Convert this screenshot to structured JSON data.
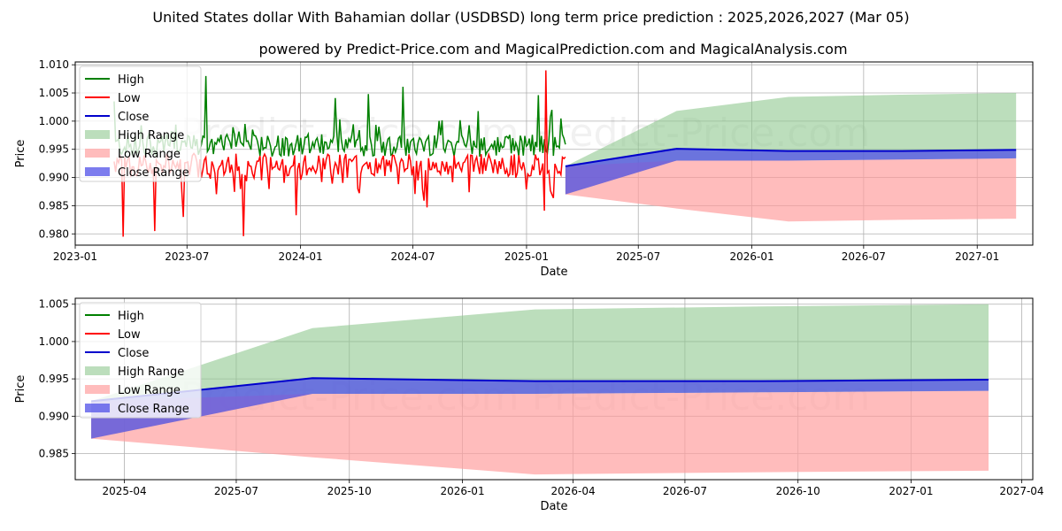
{
  "title": "United States dollar With Bahamian dollar (USDBSD) long term price prediction : 2025,2026,2027 (Mar 05)",
  "subtitle": "powered by Predict-Price.com and MagicalPrediction.com and MagicalAnalysis.com",
  "watermark": "Predict-Price.com",
  "colors": {
    "high": "#008000",
    "low": "#ff0000",
    "close": "#0000cc",
    "high_range": "#90c890",
    "low_range": "#ffa0a0",
    "close_range": "#5050e8",
    "grid": "#b0b0b0"
  },
  "chart_data": [
    {
      "type": "line",
      "xlabel": "Date",
      "ylabel": "Price",
      "xlim": [
        "2023-01-01",
        "2027-04-01"
      ],
      "ylim": [
        0.978,
        1.0105
      ],
      "xticks": [
        "2023-01",
        "2023-07",
        "2024-01",
        "2024-07",
        "2025-01",
        "2025-07",
        "2026-01",
        "2026-07",
        "2027-01"
      ],
      "yticks": [
        "0.980",
        "0.985",
        "0.990",
        "0.995",
        "1.000",
        "1.005",
        "1.010"
      ],
      "legend": [
        "High",
        "Low",
        "Close",
        "High Range",
        "Low Range",
        "Close Range"
      ],
      "legend_position": "upper-left",
      "history": {
        "start": "2023-03-05",
        "end": "2025-03-05",
        "high_base": 0.9955,
        "low_base": 0.9925,
        "high_spikes": [
          [
            "2023-03-05",
            1.0035
          ],
          [
            "2023-08-01",
            1.008
          ],
          [
            "2024-02-25",
            1.0041
          ],
          [
            "2024-04-20",
            1.0048
          ],
          [
            "2024-06-15",
            1.0061
          ],
          [
            "2025-01-20",
            1.0046
          ],
          [
            "2025-02-12",
            1.002
          ]
        ],
        "low_spikes": [
          [
            "2023-03-20",
            0.9795
          ],
          [
            "2023-05-10",
            0.9805
          ],
          [
            "2023-06-25",
            0.983
          ],
          [
            "2023-10-01",
            0.9796
          ],
          [
            "2023-12-25",
            0.9833
          ],
          [
            "2024-07-25",
            0.9847
          ],
          [
            "2025-01-30",
            0.9841
          ],
          [
            "2025-02-01",
            1.009
          ]
        ]
      },
      "forecast": {
        "dates": [
          "2025-03-05",
          "2025-09-01",
          "2026-03-01",
          "2026-09-01",
          "2027-03-05"
        ],
        "close": [
          0.992,
          0.9951,
          0.9947,
          0.9947,
          0.9949
        ],
        "high_range": [
          [
            0.987,
            0.992
          ],
          [
            0.993,
            1.0018
          ],
          [
            0.993,
            1.0043
          ],
          [
            0.9932,
            1.0047
          ],
          [
            0.9934,
            1.005
          ]
        ],
        "low_range": [
          [
            0.987,
            0.992
          ],
          [
            0.9845,
            0.993
          ],
          [
            0.9822,
            0.993
          ],
          [
            0.9825,
            0.9932
          ],
          [
            0.9827,
            0.9934
          ]
        ],
        "close_range": [
          [
            0.987,
            0.992
          ],
          [
            0.993,
            0.9951
          ],
          [
            0.993,
            0.9947
          ],
          [
            0.9932,
            0.9947
          ],
          [
            0.9934,
            0.9949
          ]
        ]
      }
    },
    {
      "type": "area",
      "xlabel": "Date",
      "ylabel": "Price",
      "xlim": [
        "2025-02-20",
        "2027-04-10"
      ],
      "ylim": [
        0.9815,
        1.0058
      ],
      "xticks": [
        "2025-04",
        "2025-07",
        "2025-10",
        "2026-01",
        "2026-04",
        "2026-07",
        "2026-10",
        "2027-01",
        "2027-04"
      ],
      "yticks": [
        "0.985",
        "0.990",
        "0.995",
        "1.000",
        "1.005"
      ],
      "legend": [
        "High",
        "Low",
        "Close",
        "High Range",
        "Low Range",
        "Close Range"
      ],
      "legend_position": "upper-left"
    }
  ]
}
